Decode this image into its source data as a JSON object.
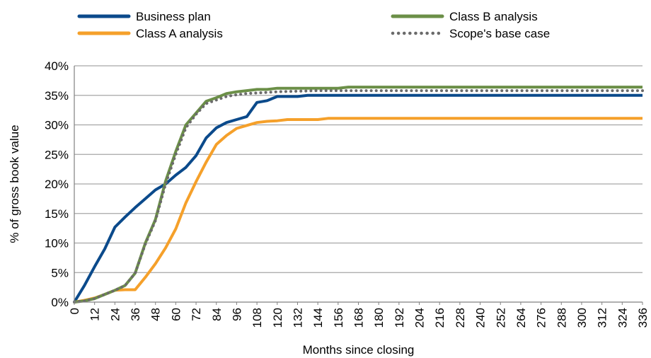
{
  "chart_data": {
    "type": "line",
    "xlabel": "Months since closing",
    "ylabel": "% of gross book value",
    "xlim": [
      0,
      336
    ],
    "ylim": [
      0,
      40
    ],
    "y_unit": "%",
    "x_tick_step": 12,
    "y_ticks": [
      0,
      5,
      10,
      15,
      20,
      25,
      30,
      35,
      40
    ],
    "y_tick_labels": [
      "0%",
      "5%",
      "10%",
      "15%",
      "20%",
      "25%",
      "30%",
      "35%",
      "40%"
    ],
    "grid": "horizontal",
    "legend_position": "top",
    "series": [
      {
        "name": "Business plan",
        "color": "#0b4a8b",
        "style": "solid",
        "points": [
          [
            0,
            0
          ],
          [
            6,
            2.8
          ],
          [
            12,
            6
          ],
          [
            18,
            9
          ],
          [
            24,
            12.7
          ],
          [
            30,
            14.4
          ],
          [
            36,
            16
          ],
          [
            42,
            17.5
          ],
          [
            48,
            19
          ],
          [
            54,
            20
          ],
          [
            60,
            21.5
          ],
          [
            66,
            22.8
          ],
          [
            72,
            24.8
          ],
          [
            78,
            27.8
          ],
          [
            84,
            29.5
          ],
          [
            90,
            30.4
          ],
          [
            96,
            30.9
          ],
          [
            102,
            31.4
          ],
          [
            108,
            33.8
          ],
          [
            114,
            34.1
          ],
          [
            120,
            34.8
          ],
          [
            132,
            34.8
          ],
          [
            138,
            35
          ],
          [
            336,
            35
          ]
        ]
      },
      {
        "name": "Class A analysis",
        "color": "#f5a02a",
        "style": "solid",
        "points": [
          [
            0,
            0
          ],
          [
            6,
            0.3
          ],
          [
            12,
            0.7
          ],
          [
            18,
            1.3
          ],
          [
            24,
            2
          ],
          [
            30,
            2.1
          ],
          [
            36,
            2.1
          ],
          [
            42,
            4.2
          ],
          [
            48,
            6.5
          ],
          [
            54,
            9.2
          ],
          [
            60,
            12.4
          ],
          [
            66,
            16.8
          ],
          [
            72,
            20.4
          ],
          [
            78,
            23.7
          ],
          [
            84,
            26.7
          ],
          [
            90,
            28.2
          ],
          [
            96,
            29.4
          ],
          [
            102,
            29.9
          ],
          [
            108,
            30.4
          ],
          [
            114,
            30.6
          ],
          [
            120,
            30.7
          ],
          [
            126,
            30.9
          ],
          [
            144,
            30.9
          ],
          [
            150,
            31.1
          ],
          [
            336,
            31.1
          ]
        ]
      },
      {
        "name": "Class B analysis",
        "color": "#6b8f47",
        "style": "solid",
        "points": [
          [
            0,
            0
          ],
          [
            6,
            0.2
          ],
          [
            12,
            0.6
          ],
          [
            18,
            1.3
          ],
          [
            24,
            2
          ],
          [
            30,
            2.8
          ],
          [
            36,
            4.9
          ],
          [
            42,
            10
          ],
          [
            48,
            14
          ],
          [
            54,
            20.5
          ],
          [
            60,
            25.5
          ],
          [
            66,
            30
          ],
          [
            72,
            32
          ],
          [
            78,
            34
          ],
          [
            84,
            34.6
          ],
          [
            90,
            35.3
          ],
          [
            96,
            35.6
          ],
          [
            102,
            35.8
          ],
          [
            108,
            36
          ],
          [
            114,
            36
          ],
          [
            120,
            36.2
          ],
          [
            156,
            36.2
          ],
          [
            162,
            36.4
          ],
          [
            336,
            36.4
          ]
        ]
      },
      {
        "name": "Scope's base case",
        "color": "#6b6b6b",
        "style": "dotted",
        "points": [
          [
            0,
            0
          ],
          [
            6,
            0.2
          ],
          [
            12,
            0.6
          ],
          [
            18,
            1.3
          ],
          [
            24,
            2
          ],
          [
            30,
            2.8
          ],
          [
            36,
            4.9
          ],
          [
            42,
            9.8
          ],
          [
            48,
            13.8
          ],
          [
            54,
            20
          ],
          [
            60,
            25
          ],
          [
            66,
            29.5
          ],
          [
            72,
            31.8
          ],
          [
            78,
            33.6
          ],
          [
            84,
            34.2
          ],
          [
            90,
            34.8
          ],
          [
            96,
            35.1
          ],
          [
            102,
            35.3
          ],
          [
            108,
            35.4
          ],
          [
            114,
            35.5
          ],
          [
            120,
            35.6
          ],
          [
            132,
            35.7
          ],
          [
            144,
            35.8
          ],
          [
            336,
            35.8
          ]
        ]
      }
    ]
  }
}
